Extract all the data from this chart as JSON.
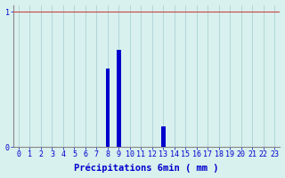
{
  "title": "",
  "xlabel": "Précipitations 6min ( mm )",
  "ylabel": "",
  "background_color": "#d8f0ee",
  "bar_color": "#0000cc",
  "grid_color": "#b0d8d8",
  "axis_color": "#888888",
  "text_color": "#0000cc",
  "ylim": [
    0,
    1.05
  ],
  "xlim": [
    -0.5,
    23.5
  ],
  "hours": [
    0,
    1,
    2,
    3,
    4,
    5,
    6,
    7,
    8,
    9,
    10,
    11,
    12,
    13,
    14,
    15,
    16,
    17,
    18,
    19,
    20,
    21,
    22,
    23
  ],
  "values": [
    0,
    0,
    0,
    0,
    0,
    0,
    0,
    0,
    0.58,
    0.72,
    0,
    0,
    0,
    0.15,
    0,
    0,
    0,
    0,
    0,
    0,
    0,
    0,
    0,
    0
  ],
  "yticks": [
    0,
    1
  ],
  "ytick_labels": [
    "0",
    "1"
  ],
  "xticks": [
    0,
    1,
    2,
    3,
    4,
    5,
    6,
    7,
    8,
    9,
    10,
    11,
    12,
    13,
    14,
    15,
    16,
    17,
    18,
    19,
    20,
    21,
    22,
    23
  ],
  "xlabel_fontsize": 7.5,
  "tick_fontsize": 6,
  "bar_width": 0.35,
  "top_line_y": 1.0,
  "top_line_color": "#cc4444"
}
